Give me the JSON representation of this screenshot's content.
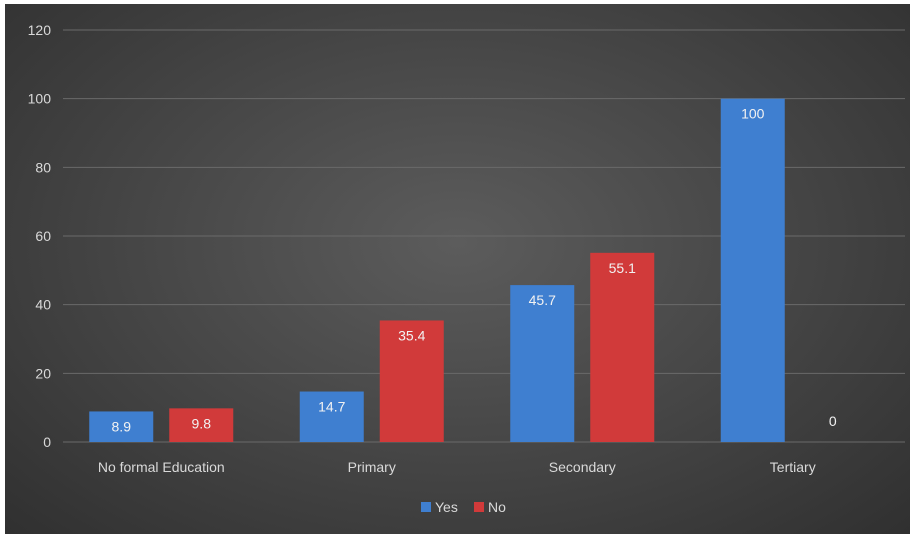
{
  "chart_data": {
    "type": "bar",
    "categories": [
      "No formal Education",
      "Primary",
      "Secondary",
      "Tertiary"
    ],
    "series": [
      {
        "name": "Yes",
        "values": [
          8.9,
          14.7,
          45.7,
          100
        ],
        "color": "#3f7fd0"
      },
      {
        "name": "No",
        "values": [
          9.8,
          35.4,
          55.1,
          0
        ],
        "color": "#d13a3a"
      }
    ],
    "ylim": [
      0,
      120
    ],
    "yticks": [
      0,
      20,
      40,
      60,
      80,
      100,
      120
    ],
    "grid": true,
    "legend": "bottom",
    "background": "#444444",
    "gridline_color": "#6a6a6a"
  }
}
